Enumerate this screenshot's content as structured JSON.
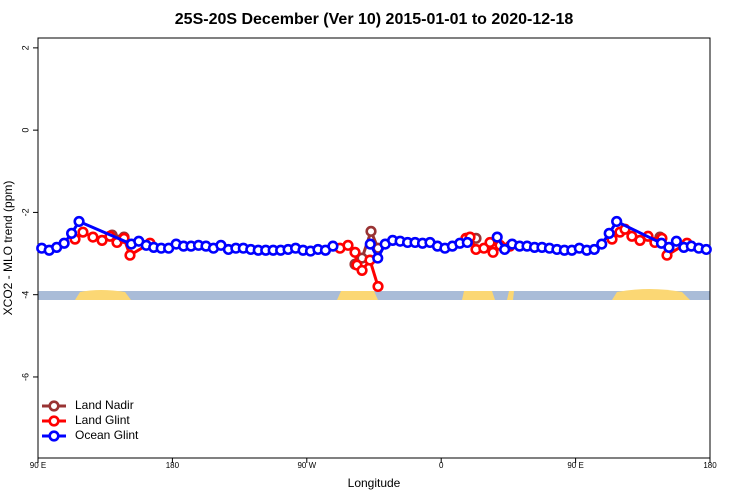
{
  "chart_data": {
    "type": "line",
    "title": "25S-20S December (Ver 10)   2015-01-01 to 2020-12-18",
    "x_label": "Longitude",
    "y_label": "XCO2 - MLO trend (ppm)",
    "xlim": [
      90,
      540
    ],
    "xticks": [
      {
        "value": 90,
        "label": "90 E"
      },
      180,
      {
        "value": 270,
        "label": "90 W"
      },
      {
        "value": 360,
        "label": "0"
      },
      {
        "value": 450,
        "label": "90 E"
      },
      {
        "value": 540,
        "label": "180"
      }
    ],
    "ylim": [
      -7.97,
      2.24
    ],
    "yticks": [
      -6,
      -4,
      -2,
      0,
      2
    ],
    "legend": "bottom-left",
    "series": [
      {
        "name": "Land Nadir",
        "color": "#993333",
        "x": [
          139.6,
          147.6,
          225,
          302.3,
          307,
          313,
          317.7,
          350,
          376.6,
          383.3,
          450,
          506.5
        ],
        "values": [
          -2.55,
          -2.6,
          null,
          -3.26,
          -3.11,
          -2.46,
          -2.87,
          null,
          -2.63,
          -2.63,
          null,
          -2.6
        ]
      },
      {
        "name": "Land Glint",
        "color": "#ff0000",
        "x": [
          114.8,
          120.1,
          126.8,
          132.9,
          138.2,
          142.9,
          147.6,
          151.6,
          165,
          225,
          292.2,
          297.6,
          302.3,
          303.6,
          307,
          312.3,
          317.7,
          350,
          376.6,
          379.3,
          383.3,
          388.6,
          392.7,
          394.7,
          399.4,
          406,
          440,
          474.4,
          479.7,
          483.1,
          487.7,
          493.1,
          498.5,
          503.1,
          507.8,
          511.2,
          524.6
        ],
        "values": [
          -2.65,
          -2.48,
          -2.6,
          -2.68,
          -2.58,
          -2.73,
          -2.63,
          -3.04,
          -2.75,
          null,
          -2.87,
          -2.8,
          -2.97,
          -3.28,
          -3.41,
          -3.16,
          -3.8,
          null,
          -2.63,
          -2.6,
          -2.9,
          -2.87,
          -2.73,
          -2.97,
          -2.8,
          -2.82,
          null,
          -2.65,
          -2.48,
          -2.41,
          -2.58,
          -2.68,
          -2.58,
          -2.73,
          -2.63,
          -3.04,
          -2.75
        ]
      },
      {
        "name": "Ocean Glint",
        "color": "#0000ff",
        "x": [
          92.5,
          97.5,
          102.5,
          107.5,
          112.5,
          117.5,
          152.5,
          157.5,
          162.5,
          167.5,
          172.5,
          177.5,
          182.5,
          187.5,
          192.5,
          197.5,
          202.5,
          207.5,
          212.5,
          217.5,
          222.5,
          227.5,
          232.5,
          237.5,
          242.5,
          247.5,
          252.5,
          257.5,
          262.5,
          267.5,
          272.5,
          277.5,
          282.5,
          287.5,
          292.5,
          312.5,
          317.5,
          322.5,
          327.5,
          332.5,
          337.5,
          342.5,
          347.5,
          352.5,
          357.5,
          362.5,
          367.5,
          372.5,
          377.5,
          387.5,
          397.5,
          402.5,
          407.5,
          412.5,
          417.5,
          422.5,
          427.5,
          432.5,
          437.5,
          442.5,
          447.5,
          452.5,
          457.5,
          462.5,
          467.5,
          472.5,
          477.5,
          507.5,
          512.5,
          517.5,
          522.5,
          527.5,
          532.5,
          537.5
        ],
        "values": [
          -2.87,
          -2.92,
          -2.85,
          -2.75,
          -2.51,
          -2.22,
          -2.77,
          -2.7,
          -2.8,
          -2.85,
          -2.87,
          -2.87,
          -2.77,
          -2.82,
          -2.82,
          -2.8,
          -2.82,
          -2.87,
          -2.8,
          -2.9,
          -2.87,
          -2.87,
          -2.9,
          -2.92,
          -2.92,
          -2.92,
          -2.92,
          -2.9,
          -2.87,
          -2.92,
          -2.94,
          -2.9,
          -2.92,
          -2.82,
          null,
          -2.77,
          -3.11,
          -2.77,
          -2.68,
          -2.7,
          -2.73,
          -2.73,
          -2.75,
          -2.73,
          -2.82,
          -2.87,
          -2.82,
          -2.75,
          -2.73,
          null,
          -2.6,
          -2.9,
          -2.77,
          -2.82,
          -2.82,
          -2.85,
          -2.85,
          -2.87,
          -2.9,
          -2.92,
          -2.92,
          -2.87,
          -2.92,
          -2.9,
          -2.77,
          -2.51,
          -2.22,
          -2.75,
          -2.85,
          -2.7,
          -2.85,
          -2.82,
          -2.87,
          -2.9
        ]
      }
    ]
  }
}
